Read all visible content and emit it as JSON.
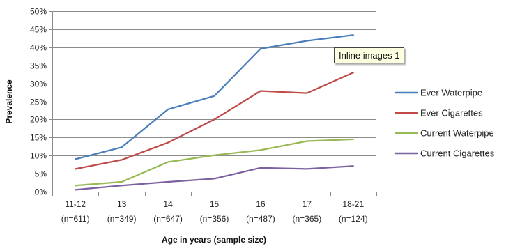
{
  "tooltip": "Inline images 1",
  "chart_data": {
    "type": "line",
    "title": "",
    "xlabel": "Age in years (sample size)",
    "ylabel": "Prevalence",
    "categories": [
      [
        "11-12",
        "(n=611)"
      ],
      [
        "13",
        "(n=349)"
      ],
      [
        "14",
        "(n=647)"
      ],
      [
        "15",
        "(n=356)"
      ],
      [
        "16",
        "(n=487)"
      ],
      [
        "17",
        "(n=365)"
      ],
      [
        "18-21",
        "(n=124)"
      ]
    ],
    "ylim": [
      0,
      0.5
    ],
    "yticks": [
      "0%",
      "5%",
      "10%",
      "15%",
      "20%",
      "25%",
      "30%",
      "35%",
      "40%",
      "45%",
      "50%"
    ],
    "grid": true,
    "legend_position": "right",
    "series": [
      {
        "name": "Ever Waterpipe",
        "color": "#4a7ebb",
        "values": [
          0.09,
          0.123,
          0.228,
          0.265,
          0.396,
          0.418,
          0.434
        ]
      },
      {
        "name": "Ever Cigarettes",
        "color": "#be4b48",
        "values": [
          0.063,
          0.088,
          0.136,
          0.2,
          0.279,
          0.273,
          0.33
        ]
      },
      {
        "name": "Current Waterpipe",
        "color": "#98b954",
        "values": [
          0.017,
          0.027,
          0.082,
          0.101,
          0.115,
          0.14,
          0.145
        ]
      },
      {
        "name": "Current Cigarettes",
        "color": "#7d60a0",
        "values": [
          0.005,
          0.017,
          0.027,
          0.036,
          0.066,
          0.063,
          0.071
        ]
      }
    ]
  }
}
